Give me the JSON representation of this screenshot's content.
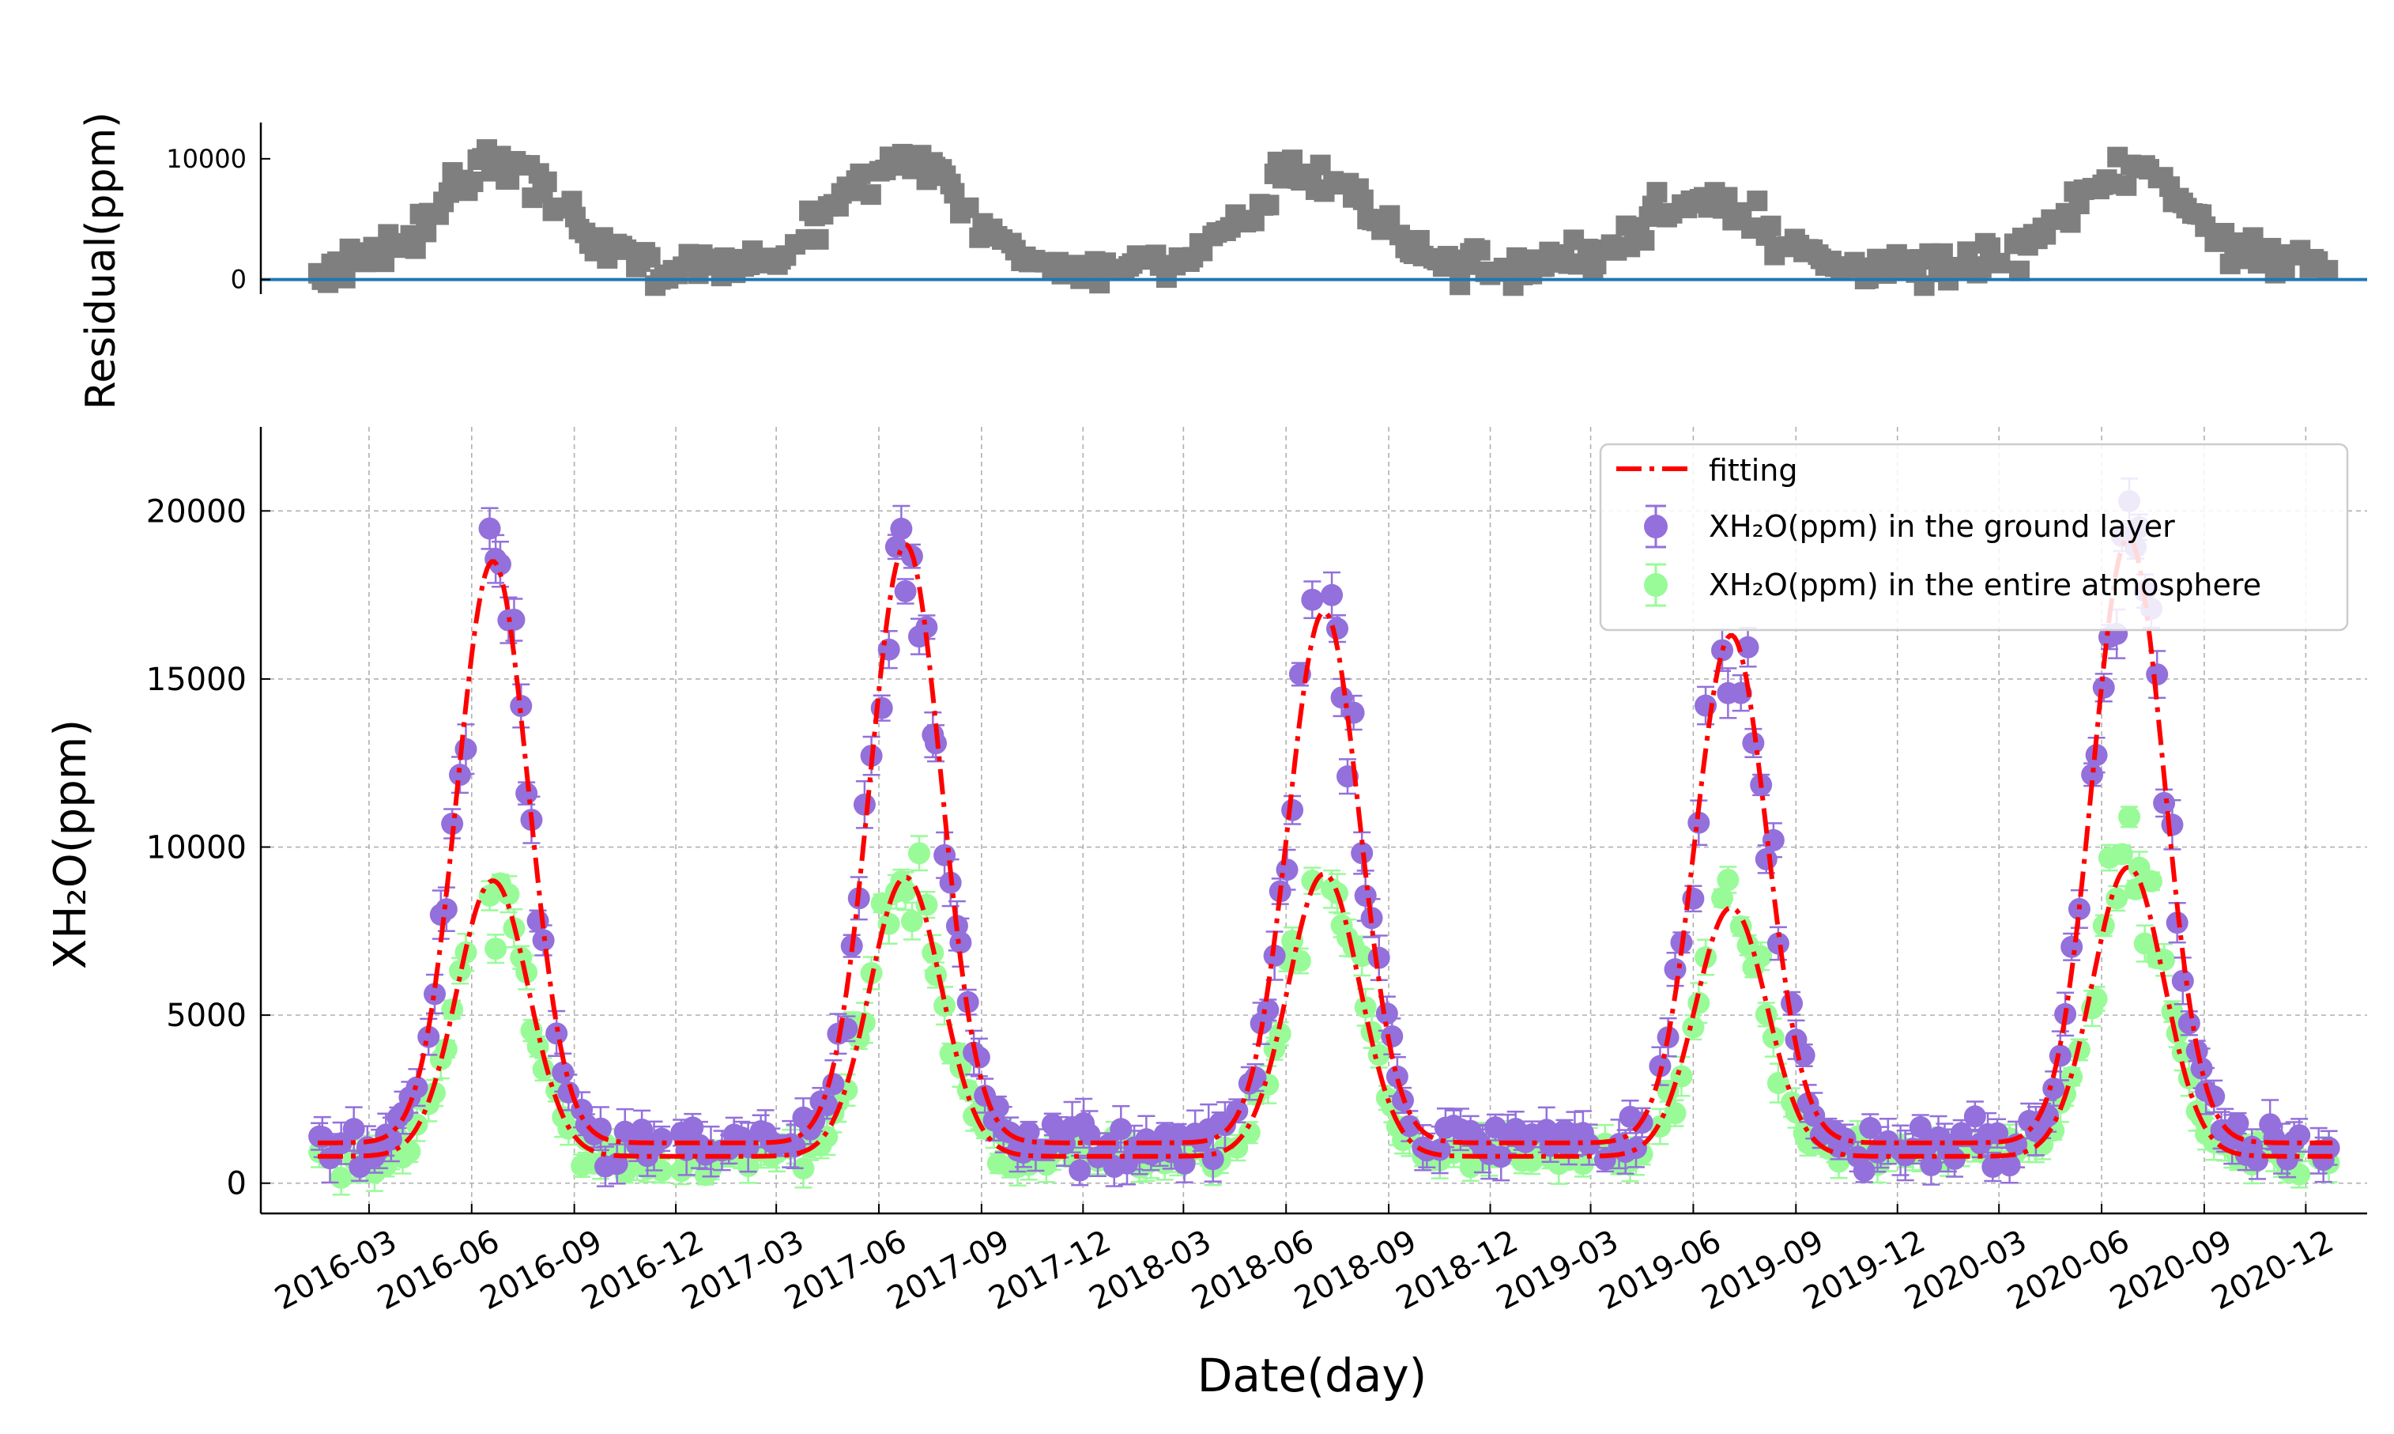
{
  "chart_data": [
    {
      "type": "scatter",
      "panel": "residual",
      "title": "",
      "xlabel": "",
      "ylabel": "Residual(ppm)",
      "ylim": [
        -1200,
        13000
      ],
      "yticks": [
        0,
        10000
      ],
      "grid": false,
      "reference_line": {
        "y": 0,
        "color": "#1f77b4"
      },
      "marker": {
        "shape": "square",
        "color": "#7f7f7f"
      },
      "peaks": [
        {
          "x": "2016-06-25",
          "y": 9500
        },
        {
          "x": "2017-06-20",
          "y": 10000
        },
        {
          "x": "2018-06-20",
          "y": 8500
        },
        {
          "x": "2019-06-10",
          "y": 6500
        },
        {
          "x": "2020-06-25",
          "y": 9000
        }
      ]
    },
    {
      "type": "scatter",
      "panel": "main",
      "title": "",
      "xlabel": "Date(day)",
      "ylabel": "XH₂O(ppm)",
      "ylim": [
        -900,
        22500
      ],
      "yticks": [
        0,
        5000,
        10000,
        15000,
        20000
      ],
      "xlim": [
        "2015-11-25",
        "2021-01-25"
      ],
      "xticks": [
        "2016-03",
        "2016-06",
        "2016-09",
        "2016-12",
        "2017-03",
        "2017-06",
        "2017-09",
        "2017-12",
        "2018-03",
        "2018-06",
        "2018-09",
        "2018-12",
        "2019-03",
        "2019-06",
        "2019-09",
        "2019-12",
        "2020-03",
        "2020-06",
        "2020-09",
        "2020-12"
      ],
      "grid": true,
      "legend_position": "top-right",
      "series": [
        {
          "name": "fitting",
          "kind": "dashdot-line",
          "color": "#ff0000"
        },
        {
          "name": "XH₂O(ppm) in the ground layer",
          "kind": "errorbar-points",
          "color": "#9370db"
        },
        {
          "name": "XH₂O(ppm) in the entire atmosphere",
          "kind": "errorbar-points",
          "color": "#98fb98"
        }
      ],
      "x_start": "2016-01-15",
      "x_end": "2020-12-25",
      "fitting_ground_peaks": [
        {
          "x": "2016-06-20",
          "y": 18500
        },
        {
          "x": "2017-06-25",
          "y": 19000
        },
        {
          "x": "2018-07-05",
          "y": 17000
        },
        {
          "x": "2019-07-05",
          "y": 16300
        },
        {
          "x": "2020-06-25",
          "y": 19200
        }
      ],
      "fitting_atmosphere_peaks": [
        {
          "x": "2016-06-20",
          "y": 9000
        },
        {
          "x": "2017-06-25",
          "y": 9100
        },
        {
          "x": "2018-07-05",
          "y": 9200
        },
        {
          "x": "2019-07-05",
          "y": 8200
        },
        {
          "x": "2020-06-25",
          "y": 9400
        }
      ],
      "seasonal_low": {
        "ground": 1200,
        "atmosphere": 800
      }
    }
  ]
}
